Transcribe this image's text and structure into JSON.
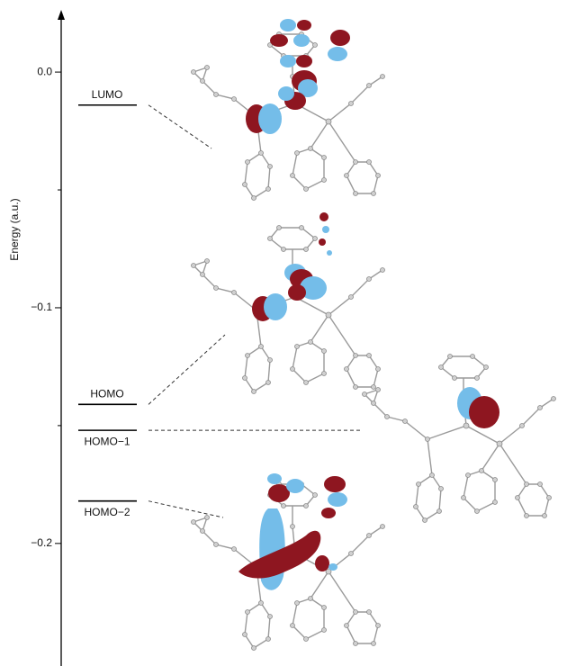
{
  "chart_data": {
    "type": "level",
    "y_label": "Energy (a.u.)",
    "ylim": [
      -0.252,
      0.026
    ],
    "yticks": [
      {
        "value": 0,
        "label": "0.0"
      },
      {
        "value": -0.1,
        "label": "−0.1"
      },
      {
        "value": -0.2,
        "label": "−0.2"
      }
    ],
    "minor_yticks": [
      -0.05,
      -0.15
    ],
    "categories": [
      "LUMO",
      "HOMO",
      "HOMO−1",
      "HOMO−2"
    ],
    "values": [
      -0.014,
      -0.141,
      -0.152,
      -0.182
    ],
    "color": "#000000"
  }
}
